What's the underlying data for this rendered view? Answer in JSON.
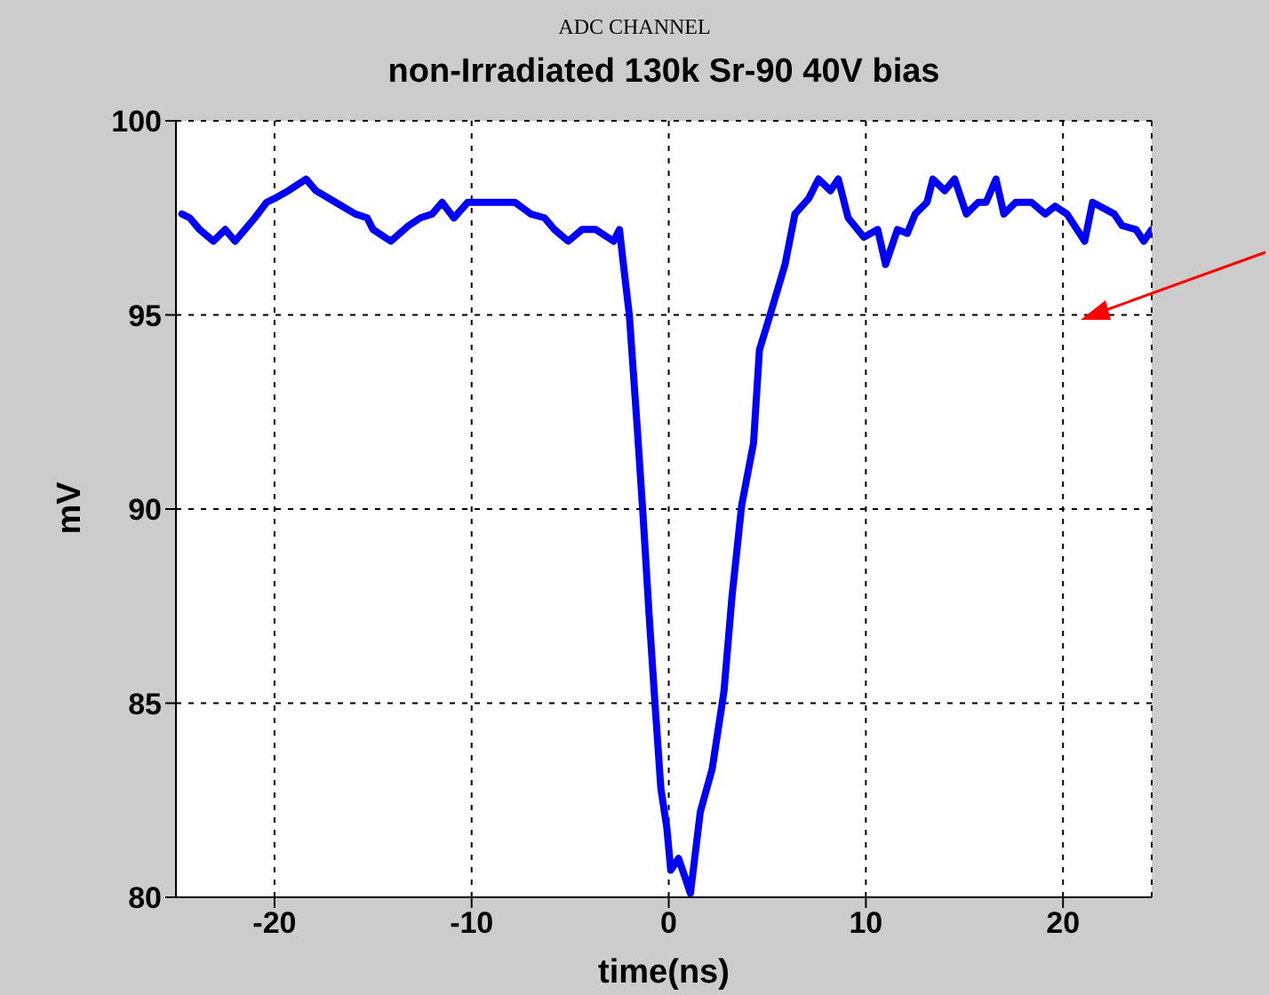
{
  "chart_data": {
    "type": "line",
    "title": "ADC CHANNEL",
    "subtitle": "non-Irradiated 130k Sr-90 40V bias",
    "xlabel": "time(ns)",
    "ylabel": "mV",
    "xlim": [
      -25,
      24.5
    ],
    "ylim": [
      80,
      100
    ],
    "xticks": [
      -20,
      -10,
      0,
      10,
      20
    ],
    "yticks": [
      80,
      85,
      90,
      95,
      100
    ],
    "grid": true,
    "line_style": "solid",
    "marker": "none",
    "x": [
      -24.7,
      -24.3,
      -23.8,
      -23.1,
      -22.5,
      -22.0,
      -21.0,
      -20.4,
      -20.0,
      -19.3,
      -18.4,
      -17.9,
      -16.9,
      -15.9,
      -15.3,
      -15.0,
      -14.1,
      -13.2,
      -12.6,
      -12.0,
      -11.5,
      -10.9,
      -10.2,
      -7.8,
      -7.0,
      -6.3,
      -5.8,
      -5.1,
      -4.4,
      -3.7,
      -2.8,
      -2.5,
      -2.3,
      -2.0,
      -1.6,
      -1.3,
      -1.0,
      -0.7,
      -0.4,
      -0.1,
      0.1,
      0.5,
      1.1,
      1.6,
      2.2,
      2.8,
      3.2,
      3.7,
      4.3,
      4.6,
      5.2,
      5.9,
      6.4,
      7.1,
      7.6,
      8.2,
      8.6,
      9.1,
      9.9,
      10.6,
      11.0,
      11.6,
      12.1,
      12.5,
      13.1,
      13.4,
      14.0,
      14.5,
      15.1,
      15.7,
      16.1,
      16.6,
      17.0,
      17.6,
      18.4,
      19.1,
      19.6,
      20.2,
      21.1,
      21.5,
      22.6,
      23.0,
      23.7,
      24.1,
      24.5
    ],
    "series": [
      {
        "color": "#0000ff",
        "values": [
          97.6,
          97.5,
          97.2,
          96.9,
          97.2,
          96.9,
          97.5,
          97.9,
          98.0,
          98.2,
          98.5,
          98.2,
          97.9,
          97.6,
          97.5,
          97.2,
          96.9,
          97.3,
          97.5,
          97.6,
          97.9,
          97.5,
          97.9,
          97.9,
          97.6,
          97.5,
          97.2,
          96.9,
          97.2,
          97.2,
          96.9,
          97.2,
          96.3,
          95.0,
          92.1,
          89.8,
          87.3,
          85.0,
          82.8,
          81.8,
          80.7,
          81.0,
          80.1,
          82.2,
          83.3,
          85.3,
          87.7,
          90.1,
          91.7,
          94.1,
          95.1,
          96.3,
          97.6,
          98.0,
          98.5,
          98.2,
          98.5,
          97.5,
          97.0,
          97.2,
          96.3,
          97.2,
          97.1,
          97.6,
          97.9,
          98.5,
          98.2,
          98.5,
          97.6,
          97.9,
          97.9,
          98.5,
          97.6,
          97.9,
          97.9,
          97.6,
          97.8,
          97.6,
          96.9,
          97.9,
          97.6,
          97.3,
          97.2,
          96.9,
          97.2
        ]
      }
    ]
  }
}
